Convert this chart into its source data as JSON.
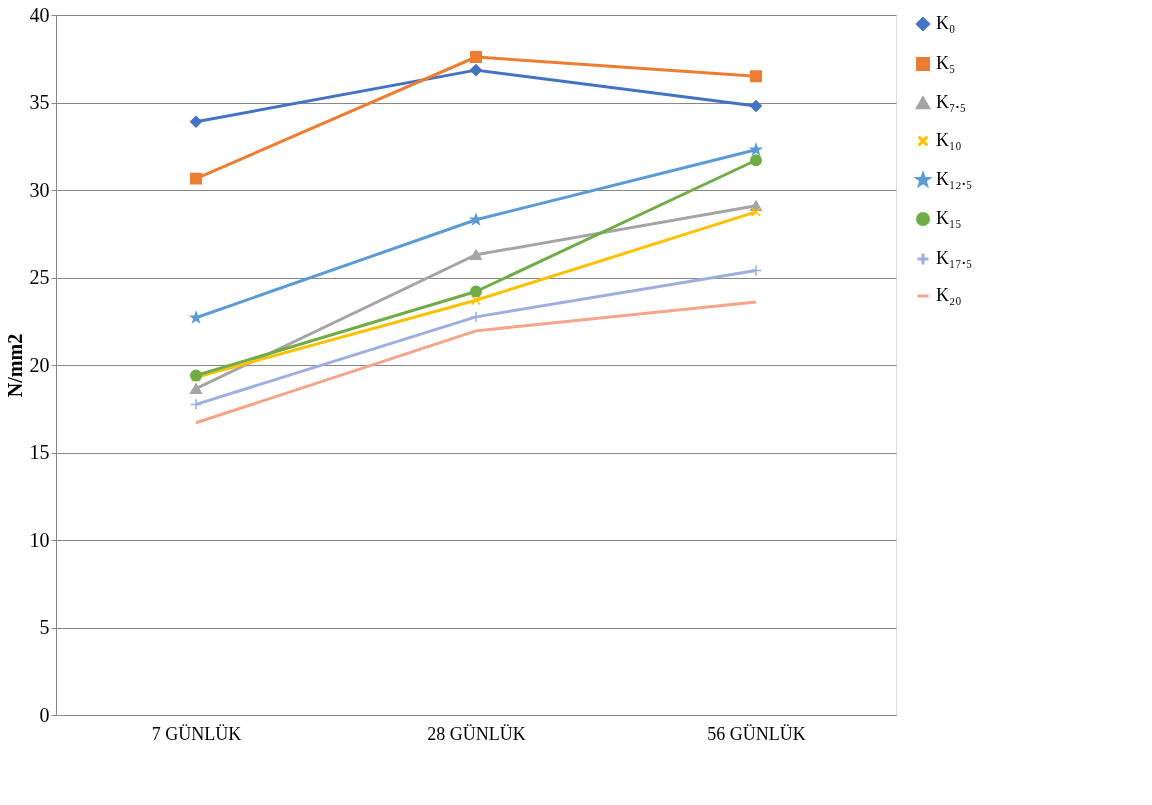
{
  "chart_data": {
    "type": "line",
    "ylabel": "N/mm2",
    "categories": [
      "7 GÜNLÜK",
      "28 GÜNLÜK",
      "56 GÜNLÜK"
    ],
    "ylim": [
      0,
      40
    ],
    "yticks": [
      0,
      5,
      10,
      15,
      20,
      25,
      30,
      35,
      40
    ],
    "grid": "y",
    "legend": "right",
    "series": [
      {
        "name": "K₀",
        "color": "#4472c4",
        "marker": "diamond",
        "values": [
          33.9,
          36.85,
          34.8
        ]
      },
      {
        "name": "K₅",
        "color": "#ed7d31",
        "marker": "square",
        "values": [
          30.65,
          37.6,
          36.5
        ]
      },
      {
        "name": "K₇.₅",
        "color": "#a5a5a5",
        "marker": "triangle",
        "values": [
          18.65,
          26.3,
          29.1
        ]
      },
      {
        "name": "K₁₀",
        "color": "#ffc000",
        "marker": "cross",
        "values": [
          19.3,
          23.7,
          28.75
        ]
      },
      {
        "name": "K₁₂.₅",
        "color": "#5b9bd5",
        "marker": "star",
        "values": [
          22.7,
          28.3,
          32.3
        ]
      },
      {
        "name": "K₁₅",
        "color": "#70ad47",
        "marker": "circle",
        "values": [
          19.4,
          24.2,
          31.7
        ]
      },
      {
        "name": "K₁₇.₅",
        "color": "#9dafe0",
        "marker": "plus",
        "values": [
          17.75,
          22.75,
          25.4
        ]
      },
      {
        "name": "K₂₀",
        "color": "#f4a58a",
        "marker": "none",
        "values": [
          16.7,
          21.95,
          23.6
        ]
      }
    ]
  }
}
